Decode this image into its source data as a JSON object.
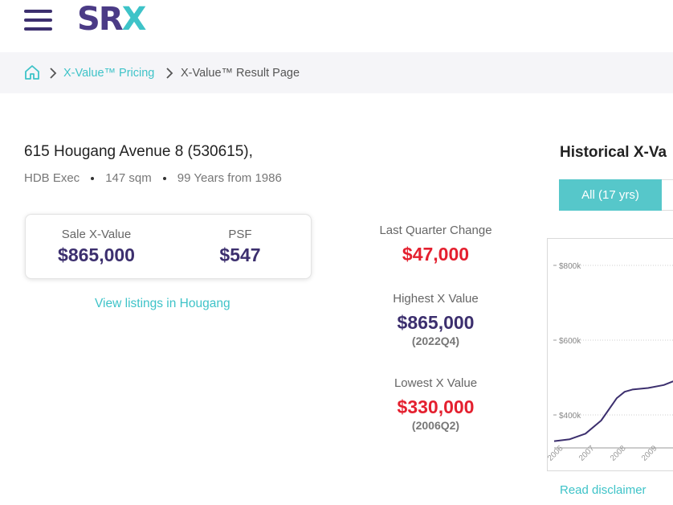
{
  "header": {
    "menu_icon": "hamburger-menu-icon",
    "logo": {
      "part1": "S",
      "part2": "R",
      "part3": "X",
      "colors": {
        "primary": "#4b3b86",
        "accent": "#3ec3c8"
      }
    }
  },
  "breadcrumb": {
    "home_icon": "home-icon",
    "items": [
      {
        "label": "X-Value™ Pricing"
      },
      {
        "label": "X-Value™ Result Page"
      }
    ]
  },
  "property": {
    "address": "615 Hougang Avenue 8 (530615),",
    "type": "HDB Exec",
    "size": "147 sqm",
    "tenure": "99 Years from 1986"
  },
  "value_card": {
    "sale_label": "Sale X-Value",
    "sale_value": "$865,000",
    "psf_label": "PSF",
    "psf_value": "$547"
  },
  "view_listings": "View listings in Hougang",
  "stats": {
    "last_quarter": {
      "label": "Last Quarter Change",
      "value": "$47,000"
    },
    "highest": {
      "label": "Highest X Value",
      "value": "$865,000",
      "period": "(2022Q4)"
    },
    "lowest": {
      "label": "Lowest X Value",
      "value": "$330,000",
      "period": "(2006Q2)"
    }
  },
  "history": {
    "title": "Historical X-Va",
    "tabs": [
      {
        "label": "All (17 yrs)",
        "active": true
      }
    ]
  },
  "chart_data": {
    "type": "line",
    "title": "",
    "xlabel": "",
    "ylabel": "",
    "y_ticks": [
      "$800k",
      "$600k",
      "$400k"
    ],
    "x_ticks": [
      "2006",
      "2007",
      "2008",
      "2009"
    ],
    "ylim": [
      320000,
      880000
    ],
    "grid": true,
    "series": [
      {
        "color": "#3c2f6e",
        "x": [
          2006.0,
          2006.5,
          2007.0,
          2007.5,
          2007.75,
          2008.0,
          2008.25,
          2008.5,
          2009.0,
          2009.5,
          2009.8
        ],
        "values": [
          330000,
          335000,
          350000,
          385000,
          415000,
          445000,
          462000,
          468000,
          472000,
          480000,
          490000
        ]
      }
    ]
  },
  "disclaimer": "Read disclaimer"
}
